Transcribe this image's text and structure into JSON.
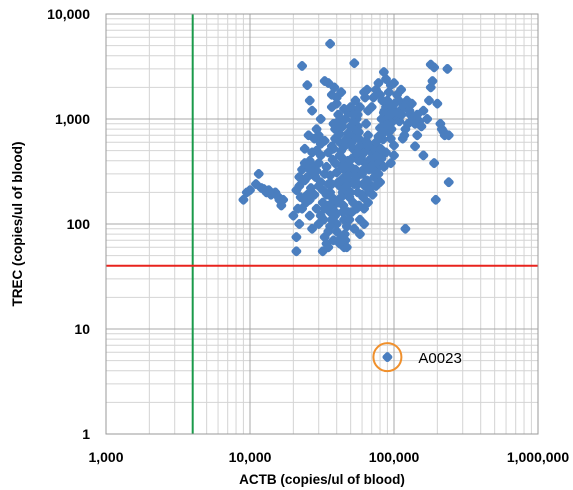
{
  "chart_data": {
    "type": "scatter",
    "title": "",
    "xlabel": "ACTB (copies/ul of blood)",
    "ylabel": "TREC (copies/ul of blood)",
    "x_scale": "log",
    "y_scale": "log",
    "xlim": [
      1000,
      1000000
    ],
    "ylim": [
      1,
      10000
    ],
    "x_ticks": [
      "1,000",
      "10,000",
      "100,000",
      "1,000,000"
    ],
    "y_ticks": [
      "10,000",
      "1,000",
      "100",
      "10",
      "1"
    ],
    "grid": true,
    "legend": "none",
    "reference_lines": [
      {
        "orientation": "vertical",
        "value": 4000,
        "color": "#1a9a4a"
      },
      {
        "orientation": "horizontal",
        "value": 40,
        "color": "#e8231d"
      }
    ],
    "annotations": [
      {
        "label": "A0023",
        "x": 90000,
        "y": 5.4,
        "circle_color": "#f0902c"
      }
    ],
    "marker_color": "#4a7ebf",
    "series": [
      {
        "points": [
          [
            9000,
            170
          ],
          [
            9500,
            200
          ],
          [
            10000,
            210
          ],
          [
            11000,
            240
          ],
          [
            11500,
            300
          ],
          [
            12000,
            220
          ],
          [
            13000,
            200
          ],
          [
            14000,
            190
          ],
          [
            15000,
            200
          ],
          [
            16000,
            170
          ],
          [
            16500,
            150
          ],
          [
            17000,
            170
          ],
          [
            15500,
            185
          ],
          [
            13500,
            210
          ],
          [
            12500,
            215
          ],
          [
            21000,
            210
          ],
          [
            22000,
            230
          ],
          [
            23000,
            330
          ],
          [
            24000,
            260
          ],
          [
            24500,
            160
          ],
          [
            22500,
            180
          ],
          [
            20000,
            120
          ],
          [
            21500,
            140
          ],
          [
            22000,
            100
          ],
          [
            21000,
            75
          ],
          [
            21000,
            55
          ],
          [
            26000,
            120
          ],
          [
            27000,
            90
          ],
          [
            28000,
            190
          ],
          [
            28500,
            280
          ],
          [
            26500,
            220
          ],
          [
            23000,
            3200
          ],
          [
            25000,
            2100
          ],
          [
            26000,
            1500
          ],
          [
            27000,
            1200
          ],
          [
            25500,
            700
          ],
          [
            24000,
            520
          ],
          [
            26000,
            400
          ],
          [
            27500,
            350
          ],
          [
            29000,
            500
          ],
          [
            30000,
            700
          ],
          [
            31000,
            1000
          ],
          [
            31000,
            250
          ],
          [
            32000,
            160
          ],
          [
            32500,
            110
          ],
          [
            33000,
            75
          ],
          [
            32000,
            55
          ],
          [
            34000,
            65
          ],
          [
            35000,
            85
          ],
          [
            36000,
            130
          ],
          [
            37000,
            180
          ],
          [
            36000,
            290
          ],
          [
            37500,
            410
          ],
          [
            38000,
            520
          ],
          [
            39000,
            650
          ],
          [
            38000,
            900
          ],
          [
            37000,
            1300
          ],
          [
            35000,
            2200
          ],
          [
            33000,
            2300
          ],
          [
            36000,
            5200
          ],
          [
            37000,
            1700
          ],
          [
            38500,
            2000
          ],
          [
            40000,
            1400
          ],
          [
            41000,
            950
          ],
          [
            42000,
            600
          ],
          [
            42000,
            450
          ],
          [
            43000,
            360
          ],
          [
            43500,
            260
          ],
          [
            44000,
            200
          ],
          [
            44500,
            150
          ],
          [
            45000,
            110
          ],
          [
            45500,
            80
          ],
          [
            45000,
            60
          ],
          [
            46000,
            70
          ],
          [
            47000,
            95
          ],
          [
            48000,
            130
          ],
          [
            49000,
            180
          ],
          [
            50000,
            250
          ],
          [
            49000,
            300
          ],
          [
            50000,
            350
          ],
          [
            51000,
            420
          ],
          [
            52000,
            520
          ],
          [
            51000,
            600
          ],
          [
            53000,
            700
          ],
          [
            54000,
            800
          ],
          [
            53000,
            3400
          ],
          [
            55000,
            1200
          ],
          [
            55000,
            1000
          ],
          [
            56000,
            850
          ],
          [
            57000,
            750
          ],
          [
            58000,
            550
          ],
          [
            59000,
            430
          ],
          [
            60000,
            320
          ],
          [
            61000,
            240
          ],
          [
            60000,
            190
          ],
          [
            62000,
            140
          ],
          [
            62000,
            100
          ],
          [
            58000,
            110
          ],
          [
            57000,
            150
          ],
          [
            56000,
            200
          ],
          [
            55000,
            280
          ],
          [
            54000,
            330
          ],
          [
            33000,
            300
          ],
          [
            34000,
            350
          ],
          [
            35000,
            240
          ],
          [
            36000,
            200
          ],
          [
            38000,
            150
          ],
          [
            39000,
            120
          ],
          [
            40000,
            100
          ],
          [
            41000,
            160
          ],
          [
            42000,
            230
          ],
          [
            40000,
            310
          ],
          [
            39000,
            380
          ],
          [
            43000,
            500
          ],
          [
            46000,
            560
          ],
          [
            47000,
            650
          ],
          [
            48000,
            730
          ],
          [
            50000,
            850
          ],
          [
            52000,
            950
          ],
          [
            56000,
            1100
          ],
          [
            58000,
            1300
          ],
          [
            63000,
            1600
          ],
          [
            65000,
            1900
          ],
          [
            62000,
            1800
          ],
          [
            66000,
            1200
          ],
          [
            64000,
            900
          ],
          [
            66000,
            700
          ],
          [
            68000,
            560
          ],
          [
            70000,
            480
          ],
          [
            72000,
            400
          ],
          [
            74000,
            460
          ],
          [
            76000,
            550
          ],
          [
            78000,
            680
          ],
          [
            80000,
            820
          ],
          [
            82000,
            1000
          ],
          [
            85000,
            1150
          ],
          [
            88000,
            1300
          ],
          [
            90000,
            1500
          ],
          [
            92000,
            1800
          ],
          [
            95000,
            2100
          ],
          [
            88000,
            2400
          ],
          [
            85000,
            2800
          ],
          [
            100000,
            2200
          ],
          [
            105000,
            1700
          ],
          [
            108000,
            1500
          ],
          [
            112000,
            1900
          ],
          [
            115000,
            1400
          ],
          [
            110000,
            1200
          ],
          [
            120000,
            800
          ],
          [
            118000,
            700
          ],
          [
            125000,
            900
          ],
          [
            130000,
            1100
          ],
          [
            135000,
            1000
          ],
          [
            140000,
            900
          ],
          [
            160000,
            1200
          ],
          [
            170000,
            1000
          ],
          [
            175000,
            1500
          ],
          [
            180000,
            2000
          ],
          [
            185000,
            2300
          ],
          [
            190000,
            3100
          ],
          [
            180000,
            3300
          ],
          [
            200000,
            1400
          ],
          [
            210000,
            900
          ],
          [
            215000,
            800
          ],
          [
            220000,
            760
          ],
          [
            225000,
            700
          ],
          [
            240000,
            700
          ],
          [
            235000,
            3000
          ],
          [
            240000,
            250
          ],
          [
            160000,
            450
          ],
          [
            190000,
            380
          ],
          [
            195000,
            170
          ],
          [
            120000,
            90
          ],
          [
            100000,
            560
          ],
          [
            95000,
            650
          ],
          [
            92000,
            750
          ],
          [
            88000,
            480
          ],
          [
            82000,
            420
          ],
          [
            76000,
            340
          ],
          [
            73000,
            280
          ],
          [
            70000,
            230
          ],
          [
            68000,
            200
          ],
          [
            66000,
            160
          ],
          [
            70000,
            1300
          ],
          [
            72000,
            1600
          ],
          [
            75000,
            1900
          ],
          [
            78000,
            2200
          ],
          [
            80000,
            1700
          ],
          [
            83000,
            1500
          ],
          [
            86000,
            1200
          ],
          [
            90000,
            1000
          ],
          [
            93000,
            900
          ],
          [
            96000,
            800
          ],
          [
            98000,
            950
          ],
          [
            104000,
            1050
          ],
          [
            30000,
            380
          ],
          [
            29000,
            320
          ],
          [
            31000,
            450
          ],
          [
            27000,
            310
          ],
          [
            46000,
            320
          ],
          [
            44000,
            270
          ],
          [
            47000,
            230
          ],
          [
            48000,
            290
          ],
          [
            50000,
            200
          ],
          [
            52000,
            160
          ],
          [
            53000,
            240
          ],
          [
            48000,
            400
          ],
          [
            45000,
            360
          ],
          [
            44000,
            420
          ],
          [
            41000,
            250
          ],
          [
            43000,
            180
          ],
          [
            37000,
            240
          ],
          [
            34000,
            190
          ],
          [
            32000,
            210
          ],
          [
            30000,
            230
          ],
          [
            38000,
            170
          ],
          [
            39000,
            130
          ],
          [
            37000,
            110
          ],
          [
            35000,
            150
          ],
          [
            33000,
            140
          ],
          [
            36000,
            95
          ],
          [
            40000,
            85
          ],
          [
            43000,
            75
          ],
          [
            47000,
            60
          ],
          [
            49000,
            110
          ],
          [
            53000,
            90
          ],
          [
            58000,
            80
          ],
          [
            60000,
            300
          ],
          [
            63000,
            380
          ],
          [
            65000,
            260
          ],
          [
            67000,
            330
          ],
          [
            69000,
            420
          ],
          [
            71000,
            360
          ],
          [
            73000,
            520
          ],
          [
            75000,
            600
          ],
          [
            77000,
            450
          ],
          [
            79000,
            380
          ],
          [
            57000,
            650
          ],
          [
            60000,
            550
          ],
          [
            62000,
            480
          ],
          [
            64000,
            620
          ],
          [
            66000,
            550
          ],
          [
            57000,
            400
          ],
          [
            55000,
            470
          ],
          [
            42000,
            720
          ],
          [
            44000,
            850
          ],
          [
            46000,
            1000
          ],
          [
            48000,
            1150
          ],
          [
            50000,
            1300
          ],
          [
            52000,
            1100
          ],
          [
            54000,
            1500
          ],
          [
            45000,
            1250
          ],
          [
            41000,
            1100
          ],
          [
            39000,
            800
          ],
          [
            40000,
            1600
          ],
          [
            43000,
            1800
          ],
          [
            37000,
            550
          ],
          [
            35000,
            480
          ],
          [
            33000,
            620
          ],
          [
            31000,
            580
          ],
          [
            29000,
            800
          ],
          [
            28000,
            650
          ],
          [
            27000,
            480
          ],
          [
            26000,
            330
          ],
          [
            25000,
            280
          ],
          [
            24000,
            380
          ],
          [
            22000,
            280
          ],
          [
            25000,
            190
          ],
          [
            23000,
            140
          ],
          [
            26000,
            170
          ],
          [
            29000,
            140
          ],
          [
            30000,
            100
          ],
          [
            31000,
            120
          ],
          [
            35000,
            60
          ],
          [
            38000,
            70
          ],
          [
            42000,
            65
          ],
          [
            44000,
            130
          ],
          [
            51000,
            130
          ],
          [
            55000,
            140
          ],
          [
            56000,
            240
          ],
          [
            61000,
            180
          ],
          [
            63000,
            230
          ],
          [
            67000,
            210
          ],
          [
            71000,
            190
          ],
          [
            73000,
            320
          ],
          [
            78000,
            300
          ],
          [
            81000,
            520
          ],
          [
            84000,
            640
          ],
          [
            86000,
            760
          ],
          [
            89000,
            880
          ],
          [
            94000,
            1100
          ],
          [
            97000,
            1300
          ],
          [
            101000,
            1400
          ],
          [
            106000,
            1150
          ],
          [
            109000,
            950
          ],
          [
            113000,
            1100
          ],
          [
            118000,
            1300
          ],
          [
            123000,
            1500
          ],
          [
            128000,
            1200
          ],
          [
            133000,
            1400
          ],
          [
            145000,
            1100
          ],
          [
            150000,
            950
          ],
          [
            155000,
            850
          ],
          [
            145000,
            700
          ],
          [
            140000,
            550
          ],
          [
            115000,
            650
          ],
          [
            100000,
            450
          ],
          [
            95000,
            380
          ],
          [
            85000,
            350
          ],
          [
            80000,
            250
          ],
          [
            75000,
            230
          ],
          [
            90000,
            5.4
          ]
        ]
      }
    ]
  }
}
